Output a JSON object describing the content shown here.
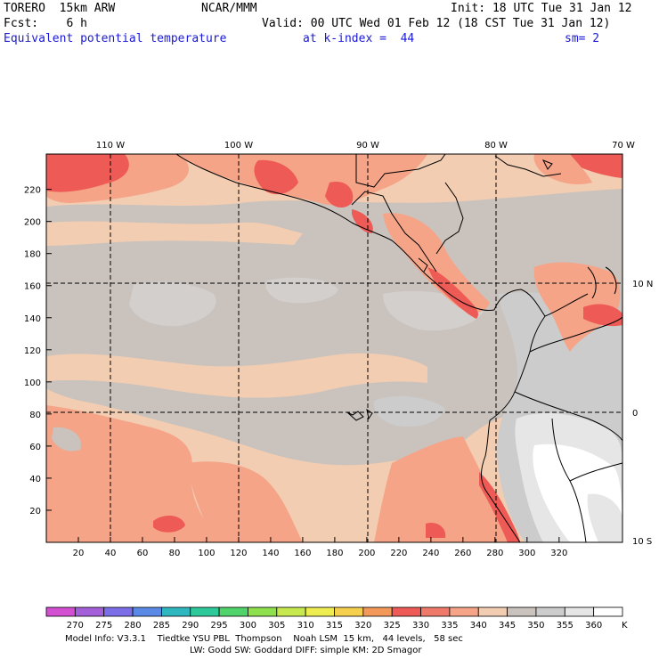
{
  "header": {
    "model": "TORERO  15km ARW",
    "org": "NCAR/MMM",
    "init": "Init: 18 UTC Tue 31 Jan 12",
    "fcst": "Fcst:    6 h",
    "valid": "Valid: 00 UTC Wed 01 Feb 12 (18 CST Tue 31 Jan 12)",
    "field": "Equivalent potential temperature",
    "level": "at k-index =  44",
    "smooth": "sm= 2"
  },
  "map": {
    "lon_labels": [
      "110 W",
      "100 W",
      "90 W",
      "80 W",
      "70 W"
    ],
    "lat_labels": [
      "10 N",
      "0",
      "10 S"
    ],
    "y_ticks": [
      "220",
      "200",
      "180",
      "160",
      "140",
      "120",
      "100",
      "80",
      "60",
      "40",
      "20"
    ],
    "x_ticks": [
      "20",
      "40",
      "60",
      "80",
      "100",
      "120",
      "140",
      "160",
      "180",
      "200",
      "220",
      "240",
      "260",
      "280",
      "300",
      "320"
    ]
  },
  "colorbar": {
    "labels": [
      "270",
      "275",
      "280",
      "285",
      "290",
      "295",
      "300",
      "305",
      "310",
      "315",
      "320",
      "325",
      "330",
      "335",
      "340",
      "345",
      "350",
      "355",
      "360"
    ],
    "unit": "K",
    "colors": [
      "#d24fd2",
      "#a460d8",
      "#7b6ee6",
      "#5a8ae6",
      "#2fb7c0",
      "#2ec99a",
      "#4fd36a",
      "#8ee04d",
      "#c8e84f",
      "#eded52",
      "#f5cf4e",
      "#f39a5a",
      "#ee5a55",
      "#f07a6a",
      "#f5a488",
      "#f2cdb2",
      "#c9c2bd",
      "#cccccc",
      "#e6e6e6",
      "#ffffff"
    ]
  },
  "footer": {
    "line1": "Model Info: V3.3.1    Tiedtke YSU PBL  Thompson    Noah LSM  15 km,   44 levels,   58 sec",
    "line2": "LW: Godd SW: Goddard DIFF: simple KM: 2D Smagor"
  }
}
